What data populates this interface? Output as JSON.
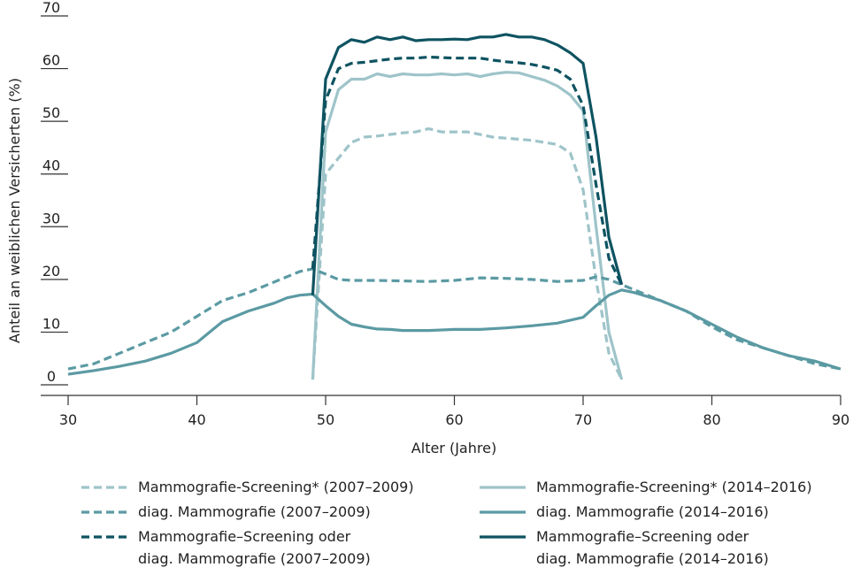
{
  "chart_data": {
    "type": "line",
    "xlabel": "Alter (Jahre)",
    "ylabel": "Anteil an weiblichen Versicherten (%)",
    "xlim": [
      30,
      90
    ],
    "ylim": [
      0,
      70
    ],
    "xticks": [
      "30",
      "40",
      "50",
      "60",
      "70",
      "80",
      "90"
    ],
    "yticks": [
      "0",
      "10",
      "20",
      "30",
      "40",
      "50",
      "60",
      "70"
    ],
    "grid": false,
    "legend_position": "bottom",
    "series": [
      {
        "name": "Mammografie-Screening* (2007–2009)",
        "color": "#9ec4c9",
        "dashed": true,
        "points": [
          [
            49,
            1
          ],
          [
            50,
            40
          ],
          [
            51,
            43
          ],
          [
            52,
            46
          ],
          [
            53,
            47
          ],
          [
            54,
            47.2
          ],
          [
            55,
            47.5
          ],
          [
            56,
            47.8
          ],
          [
            57,
            48
          ],
          [
            58,
            48.6
          ],
          [
            59,
            48
          ],
          [
            60,
            48
          ],
          [
            61,
            48
          ],
          [
            62,
            47.5
          ],
          [
            63,
            47
          ],
          [
            64,
            46.8
          ],
          [
            65,
            46.6
          ],
          [
            66,
            46.4
          ],
          [
            67,
            46
          ],
          [
            68,
            45.6
          ],
          [
            69,
            44
          ],
          [
            70,
            37
          ],
          [
            71,
            20
          ],
          [
            72,
            6
          ],
          [
            73,
            1
          ]
        ]
      },
      {
        "name": "Mammografie-Screening* (2014–2016)",
        "color": "#9ec4c9",
        "dashed": false,
        "points": [
          [
            49,
            1
          ],
          [
            50,
            48
          ],
          [
            51,
            56
          ],
          [
            52,
            58
          ],
          [
            53,
            58
          ],
          [
            54,
            59
          ],
          [
            55,
            58.5
          ],
          [
            56,
            59
          ],
          [
            57,
            58.8
          ],
          [
            58,
            58.8
          ],
          [
            59,
            59
          ],
          [
            60,
            58.8
          ],
          [
            61,
            59
          ],
          [
            62,
            58.5
          ],
          [
            63,
            59
          ],
          [
            64,
            59.3
          ],
          [
            65,
            59.2
          ],
          [
            66,
            58.5
          ],
          [
            67,
            57.8
          ],
          [
            68,
            56.7
          ],
          [
            69,
            55
          ],
          [
            70,
            52
          ],
          [
            71,
            30
          ],
          [
            72,
            10
          ],
          [
            73,
            1
          ]
        ]
      },
      {
        "name": "diag. Mammografie (2007–2009)",
        "color": "#5b9aa3",
        "dashed": true,
        "points": [
          [
            30,
            3
          ],
          [
            32,
            4
          ],
          [
            34,
            6
          ],
          [
            36,
            8
          ],
          [
            38,
            10
          ],
          [
            40,
            13
          ],
          [
            42,
            16
          ],
          [
            44,
            17.5
          ],
          [
            46,
            19.5
          ],
          [
            48,
            21.5
          ],
          [
            49,
            22
          ],
          [
            50,
            21
          ],
          [
            51,
            20
          ],
          [
            52,
            19.8
          ],
          [
            54,
            19.8
          ],
          [
            56,
            19.7
          ],
          [
            58,
            19.6
          ],
          [
            60,
            19.8
          ],
          [
            62,
            20.3
          ],
          [
            64,
            20.2
          ],
          [
            66,
            20
          ],
          [
            68,
            19.6
          ],
          [
            70,
            19.8
          ],
          [
            71,
            20.5
          ],
          [
            72,
            20
          ],
          [
            73,
            19
          ],
          [
            74,
            18
          ],
          [
            76,
            16
          ],
          [
            78,
            14
          ],
          [
            80,
            11
          ],
          [
            82,
            8.5
          ],
          [
            84,
            7
          ],
          [
            86,
            5.5
          ],
          [
            88,
            4
          ],
          [
            90,
            3
          ]
        ]
      },
      {
        "name": "diag. Mammografie (2014–2016)",
        "color": "#5b9aa3",
        "dashed": false,
        "points": [
          [
            30,
            2
          ],
          [
            32,
            2.7
          ],
          [
            34,
            3.5
          ],
          [
            36,
            4.5
          ],
          [
            38,
            6
          ],
          [
            40,
            8
          ],
          [
            41,
            10
          ],
          [
            42,
            12
          ],
          [
            44,
            14
          ],
          [
            46,
            15.5
          ],
          [
            47,
            16.5
          ],
          [
            48,
            17
          ],
          [
            49,
            17.2
          ],
          [
            50,
            15
          ],
          [
            51,
            13
          ],
          [
            52,
            11.5
          ],
          [
            53,
            11
          ],
          [
            54,
            10.6
          ],
          [
            55,
            10.5
          ],
          [
            56,
            10.3
          ],
          [
            58,
            10.3
          ],
          [
            60,
            10.5
          ],
          [
            62,
            10.5
          ],
          [
            64,
            10.8
          ],
          [
            66,
            11.2
          ],
          [
            68,
            11.7
          ],
          [
            70,
            12.8
          ],
          [
            71,
            15
          ],
          [
            72,
            17
          ],
          [
            73,
            18
          ],
          [
            74,
            17.5
          ],
          [
            76,
            16
          ],
          [
            78,
            14
          ],
          [
            80,
            11.5
          ],
          [
            82,
            9
          ],
          [
            84,
            7
          ],
          [
            86,
            5.5
          ],
          [
            88,
            4.5
          ],
          [
            90,
            3
          ]
        ]
      },
      {
        "name": "Mammografie–Screening oder diag. Mammografie (2007–2009)",
        "color": "#0e5361",
        "dashed": true,
        "points": [
          [
            49,
            22
          ],
          [
            50,
            54
          ],
          [
            51,
            60
          ],
          [
            52,
            61
          ],
          [
            53,
            61.2
          ],
          [
            54,
            61.5
          ],
          [
            55,
            61.8
          ],
          [
            56,
            62
          ],
          [
            57,
            62
          ],
          [
            58,
            62.2
          ],
          [
            59,
            62.1
          ],
          [
            60,
            62
          ],
          [
            61,
            62
          ],
          [
            62,
            62
          ],
          [
            63,
            61.6
          ],
          [
            64,
            61.3
          ],
          [
            65,
            61.1
          ],
          [
            66,
            60.8
          ],
          [
            67,
            60.3
          ],
          [
            68,
            59.7
          ],
          [
            69,
            58
          ],
          [
            70,
            53
          ],
          [
            71,
            38
          ],
          [
            72,
            24
          ],
          [
            73,
            19
          ]
        ]
      },
      {
        "name": "Mammografie–Screening oder diag. Mammografie (2014–2016)",
        "color": "#0e5361",
        "dashed": false,
        "points": [
          [
            49,
            17
          ],
          [
            50,
            58
          ],
          [
            51,
            64
          ],
          [
            52,
            65.5
          ],
          [
            53,
            65
          ],
          [
            54,
            66
          ],
          [
            55,
            65.5
          ],
          [
            56,
            66
          ],
          [
            57,
            65.3
          ],
          [
            58,
            65.5
          ],
          [
            59,
            65.5
          ],
          [
            60,
            65.6
          ],
          [
            61,
            65.5
          ],
          [
            62,
            66
          ],
          [
            63,
            66
          ],
          [
            64,
            66.5
          ],
          [
            65,
            66
          ],
          [
            66,
            66
          ],
          [
            67,
            65.5
          ],
          [
            68,
            64.5
          ],
          [
            69,
            63
          ],
          [
            70,
            61
          ],
          [
            71,
            47
          ],
          [
            72,
            28
          ],
          [
            73,
            19
          ]
        ]
      }
    ]
  },
  "legend": {
    "items": [
      {
        "lines": [
          "Mammografie-Screening* (2007–2009)"
        ],
        "color": "#9ec4c9",
        "dashed": true
      },
      {
        "lines": [
          "Mammografie-Screening* (2014–2016)"
        ],
        "color": "#9ec4c9",
        "dashed": false
      },
      {
        "lines": [
          "diag. Mammografie (2007–2009)"
        ],
        "color": "#5b9aa3",
        "dashed": true
      },
      {
        "lines": [
          "diag. Mammografie (2014–2016)"
        ],
        "color": "#5b9aa3",
        "dashed": false
      },
      {
        "lines": [
          "Mammografie–Screening oder",
          "diag. Mammografie (2007–2009)"
        ],
        "color": "#0e5361",
        "dashed": true
      },
      {
        "lines": [
          "Mammografie–Screening oder",
          "diag. Mammografie (2014–2016)"
        ],
        "color": "#0e5361",
        "dashed": false
      }
    ]
  }
}
